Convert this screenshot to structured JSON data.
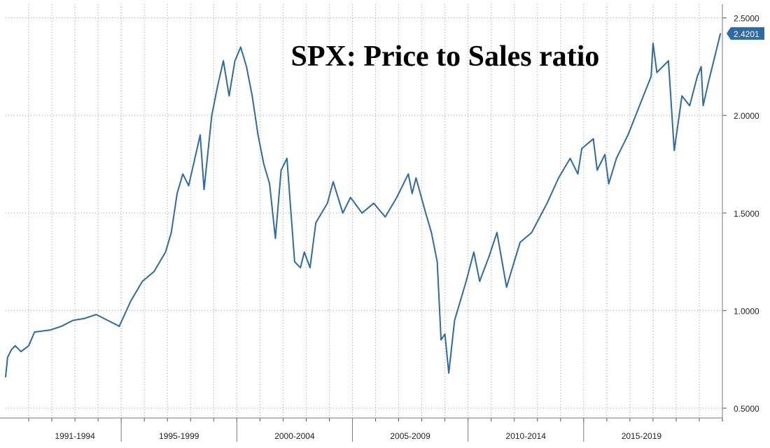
{
  "chart_data": {
    "type": "line",
    "title": "SPX: Price to Sales ratio",
    "xlabel": "",
    "ylabel": "",
    "ylim": [
      0.45,
      2.57
    ],
    "xlim": [
      "1990-01",
      "2021-01"
    ],
    "grid": true,
    "y_ticks": [
      "0.5000",
      "1.0000",
      "1.5000",
      "2.0000",
      "2.5000"
    ],
    "x_tick_labels": [
      "1991-1994",
      "1995-1999",
      "2000-2004",
      "2005-2009",
      "2010-2014",
      "2015-2019"
    ],
    "last_value_label": "2.4201",
    "colors": {
      "line": "#2e6aa3",
      "grid": "#9a9a9a",
      "badge": "#2e6aa3"
    },
    "series": [
      {
        "points": [
          [
            "1990-01",
            0.66
          ],
          [
            "1990-02",
            0.76
          ],
          [
            "1990-04",
            0.8
          ],
          [
            "1990-06",
            0.82
          ],
          [
            "1990-09",
            0.79
          ],
          [
            "1991-01",
            0.82
          ],
          [
            "1991-04",
            0.89
          ],
          [
            "1991-12",
            0.9
          ],
          [
            "1992-06",
            0.92
          ],
          [
            "1992-12",
            0.95
          ],
          [
            "1993-06",
            0.96
          ],
          [
            "1993-12",
            0.98
          ],
          [
            "1994-06",
            0.95
          ],
          [
            "1994-12",
            0.92
          ],
          [
            "1995-06",
            1.05
          ],
          [
            "1995-12",
            1.15
          ],
          [
            "1996-06",
            1.2
          ],
          [
            "1996-12",
            1.3
          ],
          [
            "1997-03",
            1.4
          ],
          [
            "1997-06",
            1.6
          ],
          [
            "1997-09",
            1.7
          ],
          [
            "1997-12",
            1.64
          ],
          [
            "1998-06",
            1.9
          ],
          [
            "1998-08",
            1.62
          ],
          [
            "1998-12",
            2.0
          ],
          [
            "1999-03",
            2.15
          ],
          [
            "1999-06",
            2.28
          ],
          [
            "1999-09",
            2.1
          ],
          [
            "1999-12",
            2.28
          ],
          [
            "2000-03",
            2.35
          ],
          [
            "2000-06",
            2.25
          ],
          [
            "2000-09",
            2.1
          ],
          [
            "2000-12",
            1.9
          ],
          [
            "2001-03",
            1.75
          ],
          [
            "2001-06",
            1.65
          ],
          [
            "2001-09",
            1.37
          ],
          [
            "2001-12",
            1.72
          ],
          [
            "2002-03",
            1.78
          ],
          [
            "2002-07",
            1.25
          ],
          [
            "2002-10",
            1.22
          ],
          [
            "2002-12",
            1.3
          ],
          [
            "2003-03",
            1.22
          ],
          [
            "2003-06",
            1.45
          ],
          [
            "2003-12",
            1.55
          ],
          [
            "2004-03",
            1.66
          ],
          [
            "2004-08",
            1.5
          ],
          [
            "2004-12",
            1.58
          ],
          [
            "2005-06",
            1.5
          ],
          [
            "2005-12",
            1.55
          ],
          [
            "2006-06",
            1.48
          ],
          [
            "2006-12",
            1.58
          ],
          [
            "2007-06",
            1.7
          ],
          [
            "2007-08",
            1.6
          ],
          [
            "2007-10",
            1.68
          ],
          [
            "2008-03",
            1.5
          ],
          [
            "2008-06",
            1.4
          ],
          [
            "2008-09",
            1.25
          ],
          [
            "2008-11",
            0.85
          ],
          [
            "2009-01",
            0.88
          ],
          [
            "2009-03",
            0.68
          ],
          [
            "2009-06",
            0.95
          ],
          [
            "2009-12",
            1.15
          ],
          [
            "2010-04",
            1.3
          ],
          [
            "2010-07",
            1.15
          ],
          [
            "2010-12",
            1.28
          ],
          [
            "2011-04",
            1.4
          ],
          [
            "2011-09",
            1.12
          ],
          [
            "2011-12",
            1.22
          ],
          [
            "2012-04",
            1.35
          ],
          [
            "2012-10",
            1.4
          ],
          [
            "2013-06",
            1.55
          ],
          [
            "2013-12",
            1.68
          ],
          [
            "2014-06",
            1.78
          ],
          [
            "2014-10",
            1.7
          ],
          [
            "2014-12",
            1.83
          ],
          [
            "2015-06",
            1.88
          ],
          [
            "2015-08",
            1.72
          ],
          [
            "2015-12",
            1.8
          ],
          [
            "2016-02",
            1.65
          ],
          [
            "2016-06",
            1.78
          ],
          [
            "2016-12",
            1.9
          ],
          [
            "2017-06",
            2.05
          ],
          [
            "2017-12",
            2.2
          ],
          [
            "2018-01",
            2.37
          ],
          [
            "2018-03",
            2.22
          ],
          [
            "2018-09",
            2.28
          ],
          [
            "2018-12",
            1.82
          ],
          [
            "2019-04",
            2.1
          ],
          [
            "2019-08",
            2.05
          ],
          [
            "2019-12",
            2.2
          ],
          [
            "2020-02",
            2.25
          ],
          [
            "2020-03",
            2.05
          ],
          [
            "2020-06",
            2.18
          ],
          [
            "2020-09",
            2.3
          ],
          [
            "2020-12",
            2.42
          ]
        ]
      }
    ]
  }
}
